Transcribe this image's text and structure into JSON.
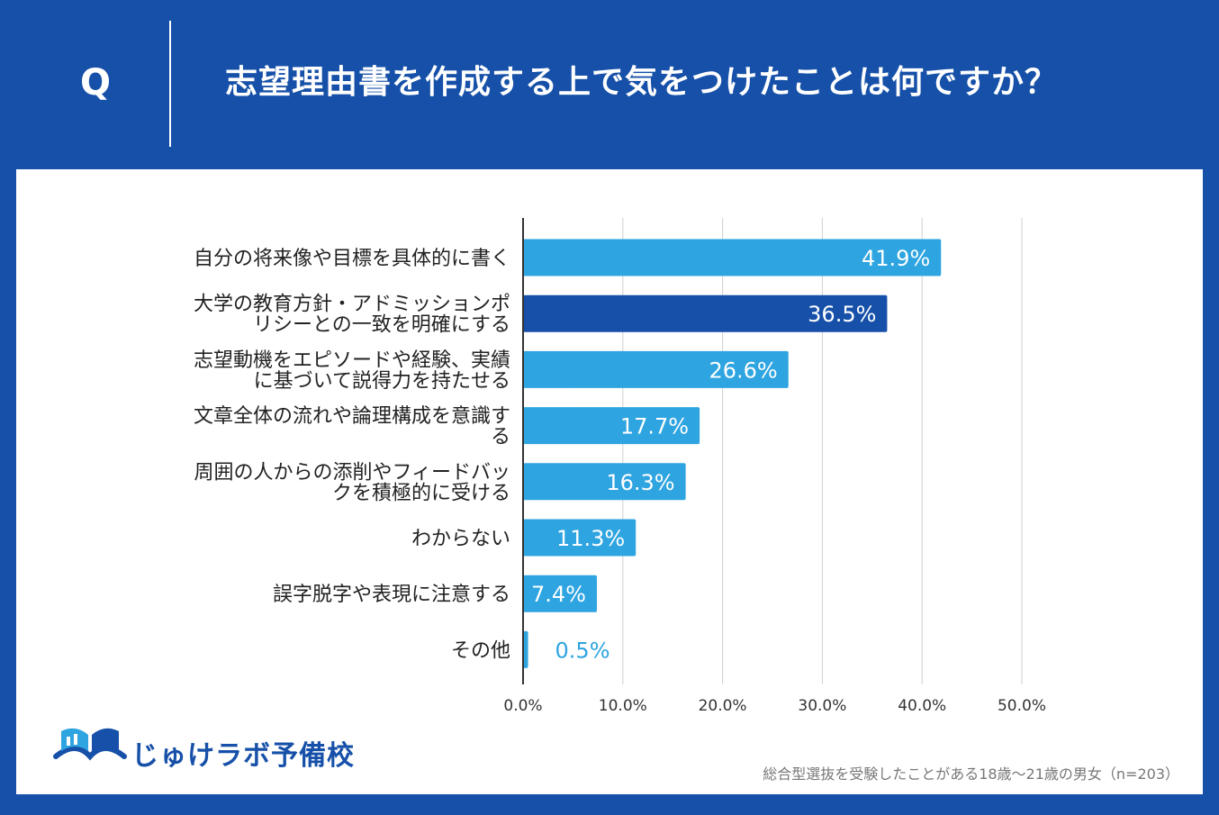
{
  "header": {
    "q_mark": "Q",
    "question": "志望理由書を作成する上で気をつけたことは何ですか？"
  },
  "colors": {
    "background": "#1650a8",
    "bar": "#2ea4e0",
    "bar_highlight": "#1650a8",
    "grid": "#cfcfcf"
  },
  "chart_data": {
    "type": "bar",
    "orientation": "horizontal",
    "title": "志望理由書を作成する上で気をつけたことは何ですか？",
    "categories": [
      [
        "自分の将来像や目標を具体的に書く"
      ],
      [
        "大学の教育方針・アドミッションポ",
        "リシーとの一致を明確にする"
      ],
      [
        "志望動機をエピソードや経験、実績",
        "に基づいて説得力を持たせる"
      ],
      [
        "文章全体の流れや論理構成を意識す",
        "る"
      ],
      [
        "周囲の人からの添削やフィードバッ",
        "クを積極的に受ける"
      ],
      [
        "わからない"
      ],
      [
        "誤字脱字や表現に注意する"
      ],
      [
        "その他"
      ]
    ],
    "values": [
      41.9,
      36.5,
      26.6,
      17.7,
      16.3,
      11.3,
      7.4,
      0.5
    ],
    "value_labels": [
      "41.9%",
      "36.5%",
      "26.6%",
      "17.7%",
      "16.3%",
      "11.3%",
      "7.4%",
      "0.5%"
    ],
    "highlight_index": 1,
    "xlim": [
      0,
      50
    ],
    "xticks": [
      0,
      10,
      20,
      30,
      40,
      50
    ],
    "xtick_labels": [
      "0.0%",
      "10.0%",
      "20.0%",
      "30.0%",
      "40.0%",
      "50.0%"
    ],
    "grid": true,
    "xlabel": "",
    "ylabel": ""
  },
  "logo": {
    "text": "じゅけラボ予備校",
    "icon": "book-logo-icon"
  },
  "footnote": "総合型選抜を受験したことがある18歳〜21歳の男女（n=203）"
}
